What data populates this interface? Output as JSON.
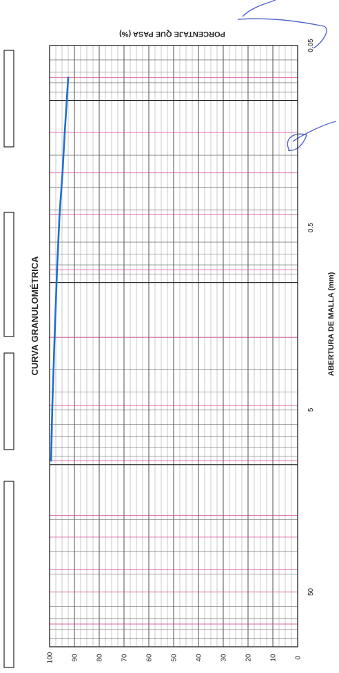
{
  "chart_data": {
    "type": "line",
    "title": "CURVA GRANULOMÉTRICA",
    "xlabel": "ABERTURA DE MALLA (mm)",
    "ylabel": "PORCENTAJE QUE PASA (%)",
    "x_scale": "log",
    "xlim": [
      0.05,
      100
    ],
    "ylim": [
      0,
      100
    ],
    "x_tick_labels": [
      "0.05",
      "0.5",
      "5",
      "50"
    ],
    "x_tick_values": [
      0.05,
      0.5,
      5,
      50
    ],
    "y_tick_labels": [
      "0",
      "10",
      "20",
      "30",
      "40",
      "50",
      "60",
      "70",
      "80",
      "90",
      "100"
    ],
    "y_tick_values": [
      0,
      10,
      20,
      30,
      40,
      50,
      60,
      70,
      80,
      90,
      100
    ],
    "grid": true,
    "colors": {
      "series": "#1f6fd0",
      "grid": "#333333",
      "grid_accent": "#d9408f"
    },
    "series": [
      {
        "x": [
          9.5,
          4.75,
          2.0,
          0.85,
          0.425,
          0.25,
          0.15,
          0.075
        ],
        "y": [
          99.4,
          98.9,
          98.0,
          97.0,
          96.0,
          94.8,
          93.9,
          92.5
        ]
      }
    ]
  }
}
